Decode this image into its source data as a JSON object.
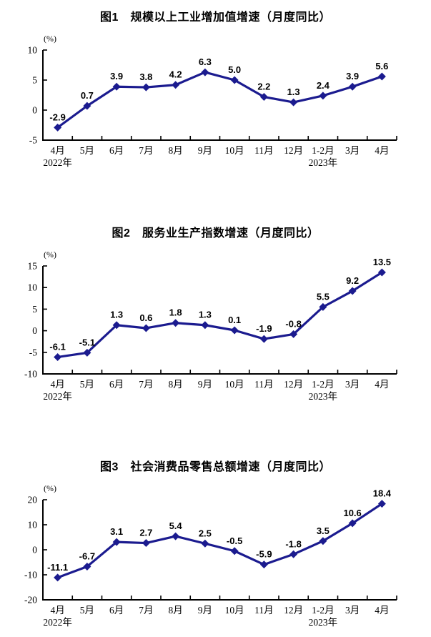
{
  "page": {
    "background": "#ffffff"
  },
  "style": {
    "line_color": "#1b1b8f",
    "axis_color": "#000000",
    "data_label_color": "#000000",
    "tick_label_color": "#000000"
  },
  "chart_data": [
    {
      "type": "line",
      "title": "图1　规模以上工业增加值增速（月度同比）",
      "ylabel": "(%)",
      "xlabel": "",
      "categories": [
        "4月",
        "5月",
        "6月",
        "7月",
        "8月",
        "9月",
        "10月",
        "11月",
        "12月",
        "1-2月",
        "3月",
        "4月"
      ],
      "year_labels": {
        "0": "2022年",
        "9": "2023年"
      },
      "values": [
        -2.9,
        0.7,
        3.9,
        3.8,
        4.2,
        6.3,
        5.0,
        2.2,
        1.3,
        2.4,
        3.9,
        5.6
      ],
      "data_labels": [
        "-2.9",
        "0.7",
        "3.9",
        "3.8",
        "4.2",
        "6.3",
        "5.0",
        "2.2",
        "1.3",
        "2.4",
        "3.9",
        "5.6"
      ],
      "ylim": [
        -5,
        10
      ],
      "yticks": [
        10,
        5,
        0,
        -5
      ],
      "grid": false,
      "legend": "none",
      "marker": "diamond",
      "line_color": "#1b1b8f"
    },
    {
      "type": "line",
      "title": "图2　服务业生产指数增速（月度同比）",
      "ylabel": "(%)",
      "xlabel": "",
      "categories": [
        "4月",
        "5月",
        "6月",
        "7月",
        "8月",
        "9月",
        "10月",
        "11月",
        "12月",
        "1-2月",
        "3月",
        "4月"
      ],
      "year_labels": {
        "0": "2022年",
        "9": "2023年"
      },
      "values": [
        -6.1,
        -5.1,
        1.3,
        0.6,
        1.8,
        1.3,
        0.1,
        -1.9,
        -0.8,
        5.5,
        9.2,
        13.5
      ],
      "data_labels": [
        "-6.1",
        "-5.1",
        "1.3",
        "0.6",
        "1.8",
        "1.3",
        "0.1",
        "-1.9",
        "-0.8",
        "5.5",
        "9.2",
        "13.5"
      ],
      "ylim": [
        -10,
        15
      ],
      "yticks": [
        15,
        10,
        5,
        0,
        -5,
        -10
      ],
      "grid": false,
      "legend": "none",
      "marker": "diamond",
      "line_color": "#1b1b8f"
    },
    {
      "type": "line",
      "title": "图3　社会消费品零售总额增速（月度同比）",
      "ylabel": "(%)",
      "xlabel": "",
      "categories": [
        "4月",
        "5月",
        "6月",
        "7月",
        "8月",
        "9月",
        "10月",
        "11月",
        "12月",
        "1-2月",
        "3月",
        "4月"
      ],
      "year_labels": {
        "0": "2022年",
        "9": "2023年"
      },
      "values": [
        -11.1,
        -6.7,
        3.1,
        2.7,
        5.4,
        2.5,
        -0.5,
        -5.9,
        -1.8,
        3.5,
        10.6,
        18.4
      ],
      "data_labels": [
        "-11.1",
        "-6.7",
        "3.1",
        "2.7",
        "5.4",
        "2.5",
        "-0.5",
        "-5.9",
        "-1.8",
        "3.5",
        "10.6",
        "18.4"
      ],
      "ylim": [
        -20,
        20
      ],
      "yticks": [
        20,
        10,
        0,
        -10,
        -20
      ],
      "grid": false,
      "legend": "none",
      "marker": "diamond",
      "line_color": "#1b1b8f"
    }
  ]
}
